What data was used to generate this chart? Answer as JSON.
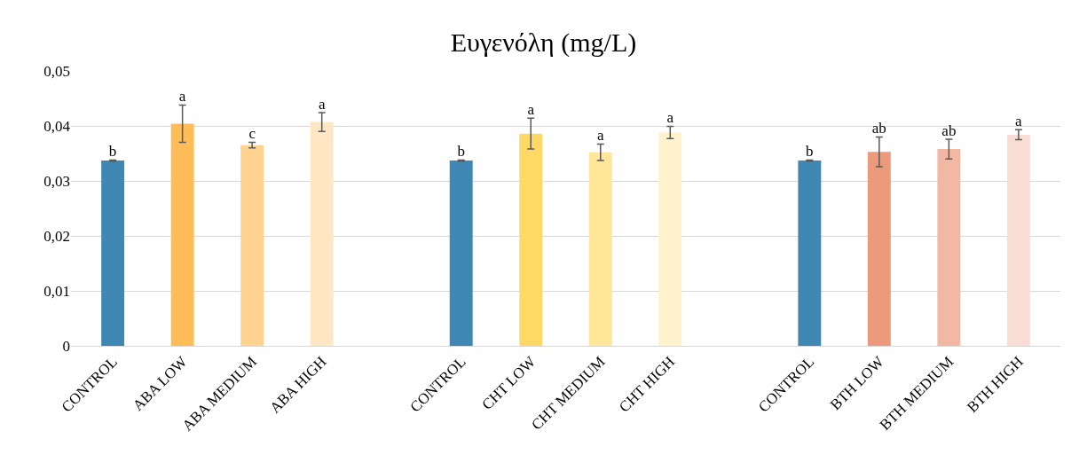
{
  "chart_data": {
    "type": "bar",
    "title": "Ευγενόλη (mg/L)",
    "categories": [
      "CONTROL",
      "ABA LOW",
      "ABA MEDIUM",
      "ABA HIGH",
      null,
      "CONTROL",
      "CHT LOW",
      "CHT MEDIUM",
      "CHT HIGH",
      null,
      "CONTROL",
      "BTH LOW",
      "BTH MEDIUM",
      "BTH HIGH"
    ],
    "values": [
      0.0337,
      0.0404,
      0.0365,
      0.0407,
      null,
      0.0337,
      0.0386,
      0.0352,
      0.0388,
      null,
      0.0337,
      0.0353,
      0.0358,
      0.0384
    ],
    "colors": [
      "#3f88b4",
      "#ffbd5a",
      "#ffd28f",
      "#ffe7c4",
      null,
      "#3f88b4",
      "#ffd966",
      "#ffe699",
      "#fff2cc",
      null,
      "#3f88b4",
      "#ec9a7c",
      "#f3b8a4",
      "#f9dcd3"
    ],
    "errors": [
      0.0001,
      0.0034,
      0.0005,
      0.0017,
      null,
      0.0001,
      0.0028,
      0.0015,
      0.0011,
      null,
      0.0001,
      0.0027,
      0.0018,
      0.0009
    ],
    "value_labels": [
      "b",
      "a",
      "c",
      "a",
      null,
      "b",
      "a",
      "a",
      "a",
      null,
      "b",
      "ab",
      "ab",
      "a"
    ],
    "ylim": [
      0,
      0.05
    ],
    "yticks": [
      {
        "value": 0,
        "label": "0"
      },
      {
        "value": 0.01,
        "label": "0,01"
      },
      {
        "value": 0.02,
        "label": "0,02"
      },
      {
        "value": 0.03,
        "label": "0,03"
      },
      {
        "value": 0.04,
        "label": "0,04"
      },
      {
        "value": 0.05,
        "label": "0,05"
      }
    ],
    "grid": "y"
  }
}
